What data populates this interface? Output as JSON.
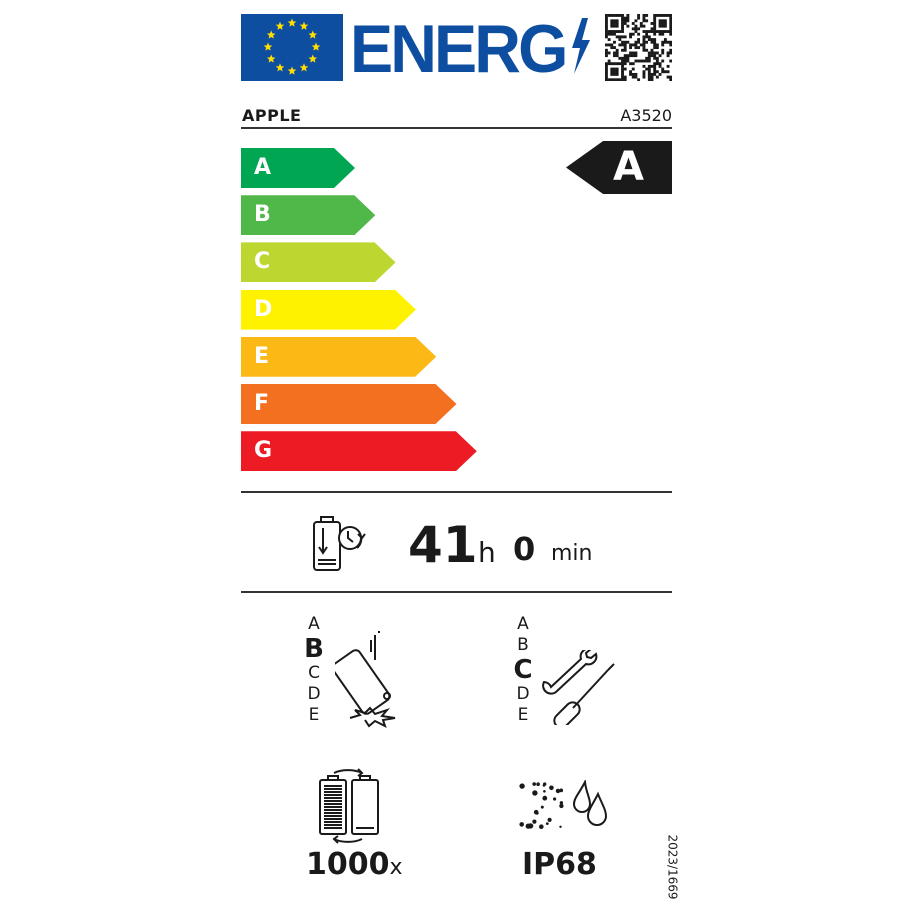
{
  "header": {
    "title": "ENERG",
    "brand": "APPLE",
    "model": "A3520"
  },
  "scale": {
    "classes": [
      {
        "letter": "A",
        "color": "#00a651"
      },
      {
        "letter": "B",
        "color": "#50b848"
      },
      {
        "letter": "C",
        "color": "#bed630"
      },
      {
        "letter": "D",
        "color": "#fff200"
      },
      {
        "letter": "E",
        "color": "#fcb814"
      },
      {
        "letter": "F",
        "color": "#f37021"
      },
      {
        "letter": "G",
        "color": "#ed1c24"
      }
    ],
    "rating": "A"
  },
  "battery_endurance": {
    "hours": "41",
    "hours_unit": "h",
    "minutes": "0",
    "minutes_unit": "min"
  },
  "drop_resistance": {
    "classes": [
      "A",
      "B",
      "C",
      "D",
      "E"
    ],
    "selected": "B"
  },
  "repairability": {
    "classes": [
      "A",
      "B",
      "C",
      "D",
      "E"
    ],
    "selected": "C"
  },
  "battery_cycles": {
    "value": "1000",
    "unit": "x"
  },
  "ingress_protection": {
    "value": "IP68"
  },
  "regulation": "2023/1669",
  "colors": {
    "eu_blue": "#0e4ea1",
    "eu_star": "#ffdd00"
  }
}
